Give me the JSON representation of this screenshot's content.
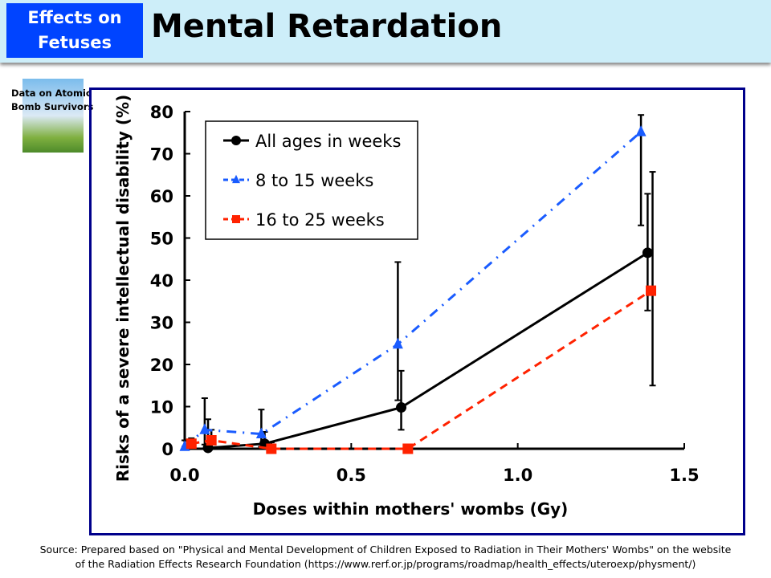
{
  "header": {
    "badge": "Effects on Fetuses",
    "badge_line1": "Effects on",
    "badge_line2": "Fetuses",
    "title": "Mental Retardation"
  },
  "logo": {
    "line1": "Data on Atomic",
    "line2": "Bomb Survivors"
  },
  "source": {
    "line1": "Source: Prepared based on \"Physical and Mental Development of Children Exposed to Radiation in Their Mothers' Wombs\" on the website",
    "line2": "of the Radiation Effects Research Foundation (https://www.rerf.or.jp/programs/roadmap/health_effects/uteroexp/physment/)"
  },
  "chart_data": {
    "type": "line",
    "xlabel": "Doses within mothers' wombs (Gy)",
    "ylabel": "Risks of a severe intellectual disability (%)",
    "xlim": [
      0,
      1.5
    ],
    "ylim": [
      0,
      80
    ],
    "xticks": [
      "0.0",
      "0.5",
      "1.0",
      "1.5"
    ],
    "yticks": [
      "0",
      "10",
      "20",
      "30",
      "40",
      "50",
      "60",
      "70",
      "80"
    ],
    "legend_position": "top-left",
    "series": [
      {
        "name": "All ages in weeks",
        "color": "#000000",
        "marker": "circle",
        "dash": "solid",
        "x": [
          0.07,
          0.24,
          0.65,
          1.39
        ],
        "y": [
          0.2,
          1.2,
          9.8,
          46.5
        ],
        "err_low": [
          0,
          0,
          4.5,
          32.8
        ],
        "err_high": [
          7,
          4,
          18.5,
          60.5
        ]
      },
      {
        "name": "8 to 15 weeks",
        "color": "#1a5cff",
        "marker": "triangle",
        "dash": "dashdot",
        "x": [
          0.0,
          0.06,
          0.23,
          0.64,
          1.37
        ],
        "y": [
          0.5,
          4.5,
          3.5,
          24.8,
          75.2
        ],
        "err_low": [
          0.5,
          1,
          0.5,
          11.5,
          53
        ],
        "err_high": [
          2,
          12,
          9.3,
          44.3,
          79.2
        ]
      },
      {
        "name": "16 to 25 weeks",
        "color": "#ff2200",
        "marker": "square",
        "dash": "dashed",
        "x": [
          0.02,
          0.08,
          0.26,
          0.67,
          1.4
        ],
        "y": [
          1.2,
          2,
          0,
          0,
          37.5
        ],
        "err_low": [
          0,
          0,
          0,
          0,
          15
        ],
        "err_high": [
          2.5,
          4.5,
          1.5,
          0,
          65.7
        ]
      }
    ]
  }
}
